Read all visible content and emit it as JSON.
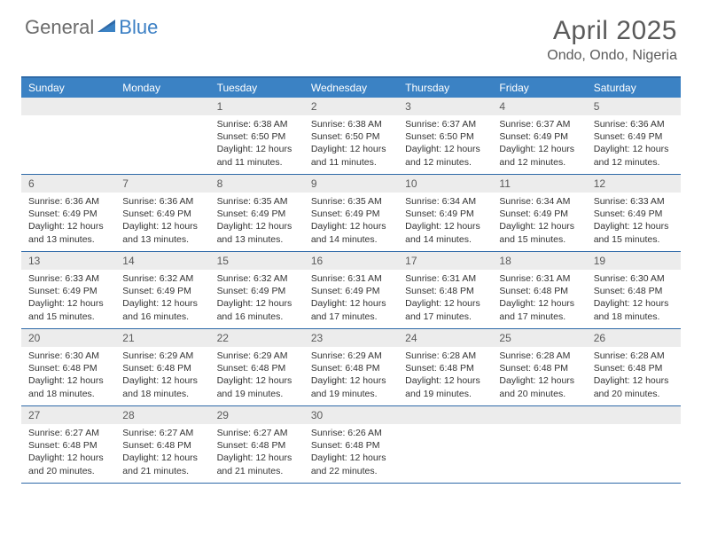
{
  "brand": {
    "part1": "General",
    "part2": "Blue"
  },
  "title": {
    "month": "April 2025",
    "location": "Ondo, Ondo, Nigeria"
  },
  "colors": {
    "header_bar": "#3b82c4",
    "header_rule": "#2f6aa8",
    "daynum_bg": "#ececec",
    "text": "#333333",
    "brand_gray": "#6b6b6b",
    "brand_blue": "#3b7fc4"
  },
  "day_names": [
    "Sunday",
    "Monday",
    "Tuesday",
    "Wednesday",
    "Thursday",
    "Friday",
    "Saturday"
  ],
  "weeks": [
    [
      null,
      null,
      {
        "n": "1",
        "sr": "6:38 AM",
        "ss": "6:50 PM",
        "dl": "12 hours and 11 minutes."
      },
      {
        "n": "2",
        "sr": "6:38 AM",
        "ss": "6:50 PM",
        "dl": "12 hours and 11 minutes."
      },
      {
        "n": "3",
        "sr": "6:37 AM",
        "ss": "6:50 PM",
        "dl": "12 hours and 12 minutes."
      },
      {
        "n": "4",
        "sr": "6:37 AM",
        "ss": "6:49 PM",
        "dl": "12 hours and 12 minutes."
      },
      {
        "n": "5",
        "sr": "6:36 AM",
        "ss": "6:49 PM",
        "dl": "12 hours and 12 minutes."
      }
    ],
    [
      {
        "n": "6",
        "sr": "6:36 AM",
        "ss": "6:49 PM",
        "dl": "12 hours and 13 minutes."
      },
      {
        "n": "7",
        "sr": "6:36 AM",
        "ss": "6:49 PM",
        "dl": "12 hours and 13 minutes."
      },
      {
        "n": "8",
        "sr": "6:35 AM",
        "ss": "6:49 PM",
        "dl": "12 hours and 13 minutes."
      },
      {
        "n": "9",
        "sr": "6:35 AM",
        "ss": "6:49 PM",
        "dl": "12 hours and 14 minutes."
      },
      {
        "n": "10",
        "sr": "6:34 AM",
        "ss": "6:49 PM",
        "dl": "12 hours and 14 minutes."
      },
      {
        "n": "11",
        "sr": "6:34 AM",
        "ss": "6:49 PM",
        "dl": "12 hours and 15 minutes."
      },
      {
        "n": "12",
        "sr": "6:33 AM",
        "ss": "6:49 PM",
        "dl": "12 hours and 15 minutes."
      }
    ],
    [
      {
        "n": "13",
        "sr": "6:33 AM",
        "ss": "6:49 PM",
        "dl": "12 hours and 15 minutes."
      },
      {
        "n": "14",
        "sr": "6:32 AM",
        "ss": "6:49 PM",
        "dl": "12 hours and 16 minutes."
      },
      {
        "n": "15",
        "sr": "6:32 AM",
        "ss": "6:49 PM",
        "dl": "12 hours and 16 minutes."
      },
      {
        "n": "16",
        "sr": "6:31 AM",
        "ss": "6:49 PM",
        "dl": "12 hours and 17 minutes."
      },
      {
        "n": "17",
        "sr": "6:31 AM",
        "ss": "6:48 PM",
        "dl": "12 hours and 17 minutes."
      },
      {
        "n": "18",
        "sr": "6:31 AM",
        "ss": "6:48 PM",
        "dl": "12 hours and 17 minutes."
      },
      {
        "n": "19",
        "sr": "6:30 AM",
        "ss": "6:48 PM",
        "dl": "12 hours and 18 minutes."
      }
    ],
    [
      {
        "n": "20",
        "sr": "6:30 AM",
        "ss": "6:48 PM",
        "dl": "12 hours and 18 minutes."
      },
      {
        "n": "21",
        "sr": "6:29 AM",
        "ss": "6:48 PM",
        "dl": "12 hours and 18 minutes."
      },
      {
        "n": "22",
        "sr": "6:29 AM",
        "ss": "6:48 PM",
        "dl": "12 hours and 19 minutes."
      },
      {
        "n": "23",
        "sr": "6:29 AM",
        "ss": "6:48 PM",
        "dl": "12 hours and 19 minutes."
      },
      {
        "n": "24",
        "sr": "6:28 AM",
        "ss": "6:48 PM",
        "dl": "12 hours and 19 minutes."
      },
      {
        "n": "25",
        "sr": "6:28 AM",
        "ss": "6:48 PM",
        "dl": "12 hours and 20 minutes."
      },
      {
        "n": "26",
        "sr": "6:28 AM",
        "ss": "6:48 PM",
        "dl": "12 hours and 20 minutes."
      }
    ],
    [
      {
        "n": "27",
        "sr": "6:27 AM",
        "ss": "6:48 PM",
        "dl": "12 hours and 20 minutes."
      },
      {
        "n": "28",
        "sr": "6:27 AM",
        "ss": "6:48 PM",
        "dl": "12 hours and 21 minutes."
      },
      {
        "n": "29",
        "sr": "6:27 AM",
        "ss": "6:48 PM",
        "dl": "12 hours and 21 minutes."
      },
      {
        "n": "30",
        "sr": "6:26 AM",
        "ss": "6:48 PM",
        "dl": "12 hours and 22 minutes."
      },
      null,
      null,
      null
    ]
  ],
  "labels": {
    "sunrise": "Sunrise:",
    "sunset": "Sunset:",
    "daylight": "Daylight:"
  }
}
